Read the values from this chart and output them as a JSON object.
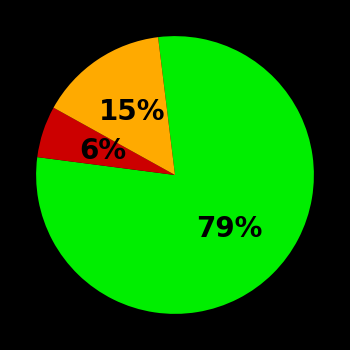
{
  "slices": [
    79,
    6,
    15
  ],
  "colors": [
    "#00ee00",
    "#cc0000",
    "#ffaa00"
  ],
  "labels": [
    "79%",
    "6%",
    "15%"
  ],
  "background_color": "#000000",
  "startangle": 97,
  "figsize": [
    3.5,
    3.5
  ],
  "dpi": 100,
  "label_fontsize": 20,
  "label_fontweight": "bold",
  "label_radii": [
    0.55,
    0.55,
    0.55
  ]
}
